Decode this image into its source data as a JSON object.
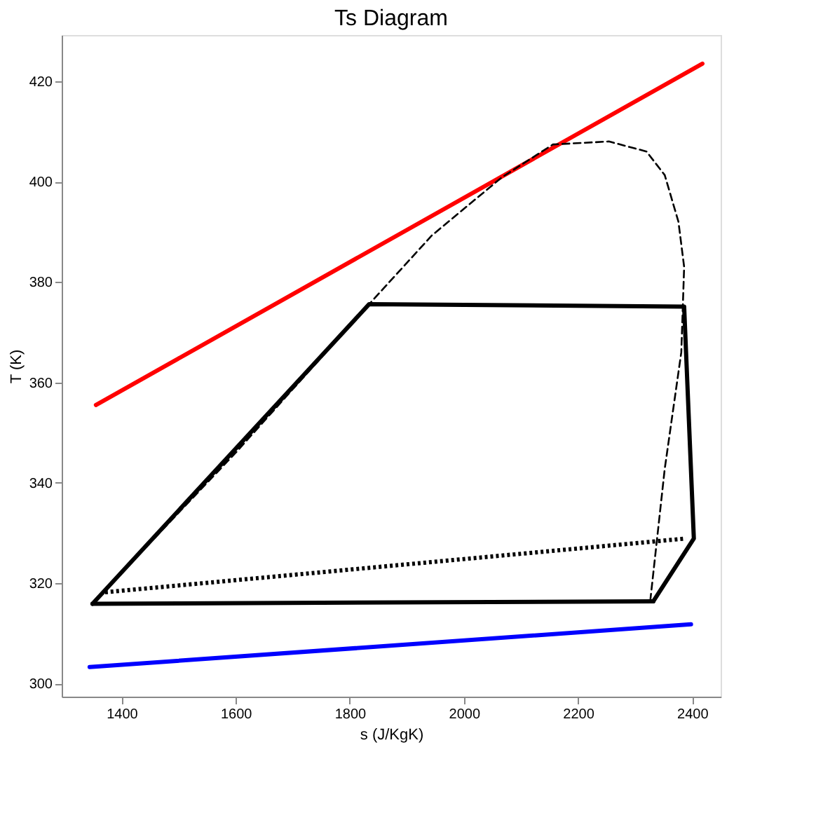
{
  "chart_data": {
    "type": "line",
    "title": "Ts Diagram",
    "xlabel": "s (J/KgK)",
    "ylabel": "T (K)",
    "xlim": [
      1295,
      2450
    ],
    "ylim": [
      297.4,
      429.2
    ],
    "xticks": [
      1400,
      1600,
      1800,
      2000,
      2200,
      2400
    ],
    "yticks": [
      300,
      320,
      340,
      360,
      380,
      400,
      420
    ],
    "grid": false,
    "marker": "none",
    "series": [
      {
        "color": "#ff0000",
        "line_style": "solid",
        "x": [
          1355,
          2418
        ],
        "values": [
          355.5,
          423.5
        ]
      },
      {
        "color": "#0000ff",
        "line_style": "solid",
        "x": [
          1344,
          2398
        ],
        "values": [
          303.3,
          311.8
        ]
      },
      {
        "color": "#000000",
        "line_style": "dashed",
        "x": [
          1349,
          1600,
          1834,
          1944,
          2067,
          2156,
          2254,
          2320,
          2352,
          2376,
          2386,
          2381,
          2352,
          2327
        ],
        "values": [
          316,
          346,
          375.6,
          389.3,
          400.9,
          407.4,
          408,
          406,
          401.3,
          392,
          383,
          366,
          342.8,
          316.9
        ]
      },
      {
        "color": "#000000",
        "line_style": "dotted",
        "x": [
          1371,
          2389
        ],
        "values": [
          318.2,
          328.9
        ]
      },
      {
        "color": "#000000",
        "line_style": "solid",
        "x": [
          1349,
          1834,
          2386,
          2403,
          2332
        ],
        "values": [
          315.9,
          375.6,
          375.1,
          328.9,
          316.4
        ]
      },
      {
        "color": "#000000",
        "line_style": "solid",
        "x": [
          1349,
          2332
        ],
        "values": [
          315.9,
          316.4
        ]
      }
    ]
  }
}
